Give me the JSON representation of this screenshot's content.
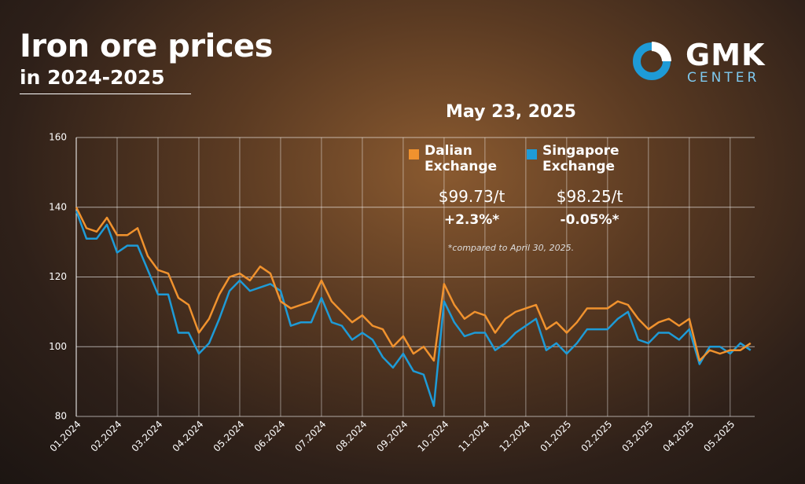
{
  "header": {
    "title": "Iron ore prices",
    "subtitle": "in 2024-2025",
    "brand": "GMK",
    "brand_sub": "CENTER"
  },
  "chart_data": {
    "type": "line",
    "date": "May 23, 2025",
    "note": "*compared to April 30, 2025.",
    "x": [
      0,
      0.25,
      0.5,
      0.75,
      1,
      1.25,
      1.5,
      1.75,
      2,
      2.25,
      2.5,
      2.75,
      3,
      3.25,
      3.5,
      3.75,
      4,
      4.25,
      4.5,
      4.75,
      5,
      5.25,
      5.5,
      5.75,
      6,
      6.25,
      6.5,
      6.75,
      7,
      7.25,
      7.5,
      7.75,
      8,
      8.25,
      8.5,
      8.75,
      9,
      9.25,
      9.5,
      9.75,
      10,
      10.25,
      10.5,
      10.75,
      11,
      11.25,
      11.5,
      11.75,
      12,
      12.25,
      12.5,
      12.75,
      13,
      13.25,
      13.5,
      13.75,
      14,
      14.25,
      14.5,
      14.75,
      15,
      15.25,
      15.5,
      15.75,
      16,
      16.25,
      16.5
    ],
    "xlim": [
      0,
      16.6
    ],
    "xticks": [
      {
        "value": 0,
        "label": "01.2024"
      },
      {
        "value": 1,
        "label": "02.2024"
      },
      {
        "value": 2,
        "label": "03.2024"
      },
      {
        "value": 3,
        "label": "04.2024"
      },
      {
        "value": 4,
        "label": "05.2024"
      },
      {
        "value": 5,
        "label": "06.2024"
      },
      {
        "value": 6,
        "label": "07.2024"
      },
      {
        "value": 7,
        "label": "08.2024"
      },
      {
        "value": 8,
        "label": "09.2024"
      },
      {
        "value": 9,
        "label": "10.2024"
      },
      {
        "value": 10,
        "label": "11.2024"
      },
      {
        "value": 11,
        "label": "12.2024"
      },
      {
        "value": 12,
        "label": "01.2025"
      },
      {
        "value": 13,
        "label": "02.2025"
      },
      {
        "value": 14,
        "label": "03.2025"
      },
      {
        "value": 15,
        "label": "04.2025"
      },
      {
        "value": 16,
        "label": "05.2025"
      }
    ],
    "ylim": [
      80,
      160
    ],
    "yticks": [
      80,
      100,
      120,
      140,
      160
    ],
    "grid": true,
    "series": [
      {
        "name": "Dalian Exchange",
        "color": "#f0922e",
        "price_label": "$99.73/t",
        "change_label": "+2.3%*",
        "values": [
          140,
          134,
          133,
          137,
          132,
          132,
          134,
          126,
          122,
          121,
          114,
          112,
          104,
          108,
          115,
          120,
          121,
          119,
          123,
          121,
          113,
          111,
          112,
          113,
          119,
          113,
          110,
          107,
          109,
          106,
          105,
          100,
          103,
          98,
          100,
          96,
          118,
          112,
          108,
          110,
          109,
          104,
          108,
          110,
          111,
          112,
          105,
          107,
          104,
          107,
          111,
          111,
          111,
          113,
          112,
          108,
          105,
          107,
          108,
          106,
          108,
          96,
          99,
          98,
          99,
          99,
          101
        ]
      },
      {
        "name": "Singapore Exchange",
        "color": "#1e9bd7",
        "price_label": "$98.25/t",
        "change_label": "-0.05%*",
        "values": [
          139,
          131,
          131,
          135,
          127,
          129,
          129,
          122,
          115,
          115,
          104,
          104,
          98,
          101,
          108,
          116,
          119,
          116,
          117,
          118,
          116,
          106,
          107,
          107,
          114,
          107,
          106,
          102,
          104,
          102,
          97,
          94,
          98,
          93,
          92,
          83,
          113,
          107,
          103,
          104,
          104,
          99,
          101,
          104,
          106,
          108,
          99,
          101,
          98,
          101,
          105,
          105,
          105,
          108,
          110,
          102,
          101,
          104,
          104,
          102,
          105,
          95,
          100,
          100,
          98,
          101,
          99
        ]
      }
    ]
  }
}
